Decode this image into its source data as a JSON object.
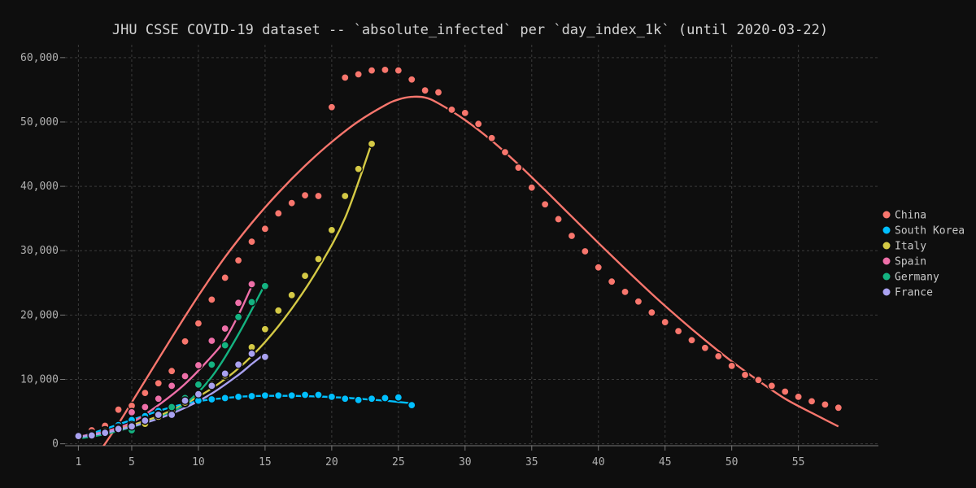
{
  "chart_data": {
    "type": "scatter",
    "title": "JHU CSSE COVID-19 dataset -- `absolute_infected` per `day_index_1k` (until 2020-03-22)",
    "xlabel": "",
    "ylabel": "",
    "xlim": [
      0,
      61
    ],
    "ylim": [
      -300,
      62000
    ],
    "x_ticks": [
      1,
      5,
      10,
      15,
      20,
      25,
      30,
      35,
      40,
      45,
      50,
      55
    ],
    "y_ticks": [
      0,
      10000,
      20000,
      30000,
      40000,
      50000,
      60000
    ],
    "y_tick_labels": [
      "0",
      "10,000",
      "20,000",
      "30,000",
      "40,000",
      "50,000",
      "60,000"
    ],
    "grid": true,
    "legend_position": "right",
    "series": [
      {
        "name": "China",
        "color": "#f8766d",
        "points": [
          [
            1,
            1400
          ],
          [
            2,
            2100
          ],
          [
            3,
            2800
          ],
          [
            4,
            5300
          ],
          [
            5,
            5900
          ],
          [
            6,
            7900
          ],
          [
            7,
            9400
          ],
          [
            8,
            11300
          ],
          [
            9,
            15900
          ],
          [
            10,
            18700
          ],
          [
            11,
            22400
          ],
          [
            12,
            25800
          ],
          [
            13,
            28500
          ],
          [
            14,
            31400
          ],
          [
            15,
            33400
          ],
          [
            16,
            35800
          ],
          [
            17,
            37400
          ],
          [
            18,
            38600
          ],
          [
            19,
            38500
          ],
          [
            20,
            52300
          ],
          [
            21,
            56900
          ],
          [
            22,
            57400
          ],
          [
            23,
            58000
          ],
          [
            24,
            58100
          ],
          [
            25,
            58000
          ],
          [
            26,
            56600
          ],
          [
            27,
            54900
          ],
          [
            28,
            54600
          ],
          [
            29,
            51900
          ],
          [
            30,
            51400
          ],
          [
            31,
            49700
          ],
          [
            32,
            47500
          ],
          [
            33,
            45300
          ],
          [
            34,
            42900
          ],
          [
            35,
            39800
          ],
          [
            36,
            37200
          ],
          [
            37,
            34900
          ],
          [
            38,
            32300
          ],
          [
            39,
            29900
          ],
          [
            40,
            27400
          ],
          [
            41,
            25200
          ],
          [
            42,
            23600
          ],
          [
            43,
            22100
          ],
          [
            44,
            20400
          ],
          [
            45,
            18900
          ],
          [
            46,
            17500
          ],
          [
            47,
            16100
          ],
          [
            48,
            14900
          ],
          [
            49,
            13600
          ],
          [
            50,
            12100
          ],
          [
            51,
            10700
          ],
          [
            52,
            9900
          ],
          [
            53,
            9000
          ],
          [
            54,
            8100
          ],
          [
            55,
            7300
          ],
          [
            56,
            6600
          ],
          [
            57,
            6100
          ],
          [
            58,
            5600
          ]
        ],
        "fit": [
          [
            2.5,
            -1500
          ],
          [
            4,
            3100
          ],
          [
            6,
            9800
          ],
          [
            8,
            16500
          ],
          [
            10,
            23000
          ],
          [
            12,
            29000
          ],
          [
            14,
            34300
          ],
          [
            16,
            39000
          ],
          [
            18,
            43200
          ],
          [
            20,
            46900
          ],
          [
            22,
            50100
          ],
          [
            24,
            52600
          ],
          [
            25,
            53500
          ],
          [
            26,
            53900
          ],
          [
            27,
            53800
          ],
          [
            28,
            52900
          ],
          [
            30,
            50300
          ],
          [
            32,
            47100
          ],
          [
            34,
            43400
          ],
          [
            36,
            39400
          ],
          [
            38,
            35300
          ],
          [
            40,
            31200
          ],
          [
            42,
            27200
          ],
          [
            44,
            23300
          ],
          [
            46,
            19600
          ],
          [
            48,
            16100
          ],
          [
            50,
            12800
          ],
          [
            52,
            9800
          ],
          [
            54,
            7000
          ],
          [
            56,
            4800
          ],
          [
            58,
            2700
          ]
        ]
      },
      {
        "name": "South Korea",
        "color": "#00bfff",
        "points": [
          [
            1,
            1300
          ],
          [
            2,
            1500
          ],
          [
            3,
            2100
          ],
          [
            4,
            2900
          ],
          [
            5,
            3700
          ],
          [
            6,
            4300
          ],
          [
            7,
            5100
          ],
          [
            8,
            5800
          ],
          [
            9,
            6300
          ],
          [
            10,
            6700
          ],
          [
            11,
            6900
          ],
          [
            12,
            7100
          ],
          [
            13,
            7300
          ],
          [
            14,
            7400
          ],
          [
            15,
            7500
          ],
          [
            16,
            7500
          ],
          [
            17,
            7500
          ],
          [
            18,
            7600
          ],
          [
            19,
            7600
          ],
          [
            20,
            7300
          ],
          [
            21,
            7000
          ],
          [
            22,
            6800
          ],
          [
            23,
            7000
          ],
          [
            24,
            7100
          ],
          [
            25,
            7200
          ],
          [
            26,
            6000
          ]
        ],
        "fit": [
          [
            1,
            1000
          ],
          [
            2,
            1600
          ],
          [
            3,
            2300
          ],
          [
            4,
            3000
          ],
          [
            5,
            3700
          ],
          [
            6,
            4400
          ],
          [
            7,
            5100
          ],
          [
            8,
            5700
          ],
          [
            9,
            6200
          ],
          [
            10,
            6600
          ],
          [
            11,
            6900
          ],
          [
            12,
            7100
          ],
          [
            13,
            7300
          ],
          [
            14,
            7400
          ],
          [
            15,
            7450
          ],
          [
            16,
            7450
          ],
          [
            17,
            7450
          ],
          [
            18,
            7400
          ],
          [
            19,
            7350
          ],
          [
            20,
            7250
          ],
          [
            21,
            7150
          ],
          [
            22,
            7000
          ],
          [
            23,
            6850
          ],
          [
            24,
            6700
          ],
          [
            25,
            6500
          ],
          [
            26,
            6300
          ]
        ]
      },
      {
        "name": "Italy",
        "color": "#d4c945",
        "points": [
          [
            1,
            1100
          ],
          [
            2,
            1600
          ],
          [
            3,
            2000
          ],
          [
            4,
            2500
          ],
          [
            5,
            2900
          ],
          [
            6,
            3100
          ],
          [
            7,
            4200
          ],
          [
            8,
            5300
          ],
          [
            9,
            6400
          ],
          [
            10,
            7800
          ],
          [
            11,
            9200
          ],
          [
            12,
            10600
          ],
          [
            13,
            12400
          ],
          [
            14,
            15000
          ],
          [
            15,
            17800
          ],
          [
            16,
            20700
          ],
          [
            17,
            23100
          ],
          [
            18,
            26100
          ],
          [
            19,
            28700
          ],
          [
            20,
            33200
          ],
          [
            21,
            38500
          ],
          [
            22,
            42700
          ],
          [
            23,
            46600
          ]
        ],
        "fit": [
          [
            1,
            900
          ],
          [
            3,
            1800
          ],
          [
            5,
            2900
          ],
          [
            7,
            4300
          ],
          [
            9,
            6200
          ],
          [
            11,
            8600
          ],
          [
            13,
            11700
          ],
          [
            15,
            15800
          ],
          [
            17,
            21000
          ],
          [
            19,
            27300
          ],
          [
            21,
            35100
          ],
          [
            23,
            46700
          ]
        ]
      },
      {
        "name": "Spain",
        "color": "#ee6fa8",
        "points": [
          [
            1,
            1200
          ],
          [
            2,
            1500
          ],
          [
            3,
            1800
          ],
          [
            4,
            2500
          ],
          [
            5,
            4900
          ],
          [
            6,
            5700
          ],
          [
            7,
            7000
          ],
          [
            8,
            9000
          ],
          [
            9,
            10500
          ],
          [
            10,
            12200
          ],
          [
            11,
            16000
          ],
          [
            12,
            17900
          ],
          [
            13,
            21900
          ],
          [
            14,
            24800
          ]
        ],
        "fit": [
          [
            1,
            1100
          ],
          [
            3,
            1900
          ],
          [
            5,
            3300
          ],
          [
            7,
            6000
          ],
          [
            9,
            9300
          ],
          [
            11,
            13600
          ],
          [
            12,
            16200
          ],
          [
            13,
            20000
          ],
          [
            14,
            24500
          ]
        ]
      },
      {
        "name": "Germany",
        "color": "#14b381",
        "points": [
          [
            1,
            1100
          ],
          [
            2,
            1300
          ],
          [
            3,
            1700
          ],
          [
            4,
            2200
          ],
          [
            5,
            2100
          ],
          [
            6,
            3700
          ],
          [
            7,
            4600
          ],
          [
            8,
            5700
          ],
          [
            9,
            7100
          ],
          [
            10,
            9200
          ],
          [
            11,
            12300
          ],
          [
            12,
            15300
          ],
          [
            13,
            19700
          ],
          [
            14,
            22000
          ],
          [
            15,
            24500
          ]
        ],
        "fit": [
          [
            1,
            800
          ],
          [
            3,
            1500
          ],
          [
            5,
            2600
          ],
          [
            7,
            4000
          ],
          [
            9,
            6200
          ],
          [
            11,
            10400
          ],
          [
            13,
            17000
          ],
          [
            15,
            24800
          ]
        ]
      },
      {
        "name": "France",
        "color": "#a9a1f0",
        "points": [
          [
            1,
            1200
          ],
          [
            2,
            1300
          ],
          [
            3,
            1700
          ],
          [
            4,
            2300
          ],
          [
            5,
            2700
          ],
          [
            6,
            3600
          ],
          [
            7,
            4500
          ],
          [
            8,
            4500
          ],
          [
            9,
            6700
          ],
          [
            10,
            7700
          ],
          [
            11,
            9000
          ],
          [
            12,
            10900
          ],
          [
            13,
            12300
          ],
          [
            14,
            14000
          ],
          [
            15,
            13500
          ]
        ],
        "fit": [
          [
            1,
            1000
          ],
          [
            3,
            1700
          ],
          [
            5,
            2700
          ],
          [
            7,
            3900
          ],
          [
            9,
            5600
          ],
          [
            11,
            7800
          ],
          [
            13,
            10700
          ],
          [
            14,
            12400
          ],
          [
            15,
            14000
          ]
        ]
      }
    ]
  }
}
